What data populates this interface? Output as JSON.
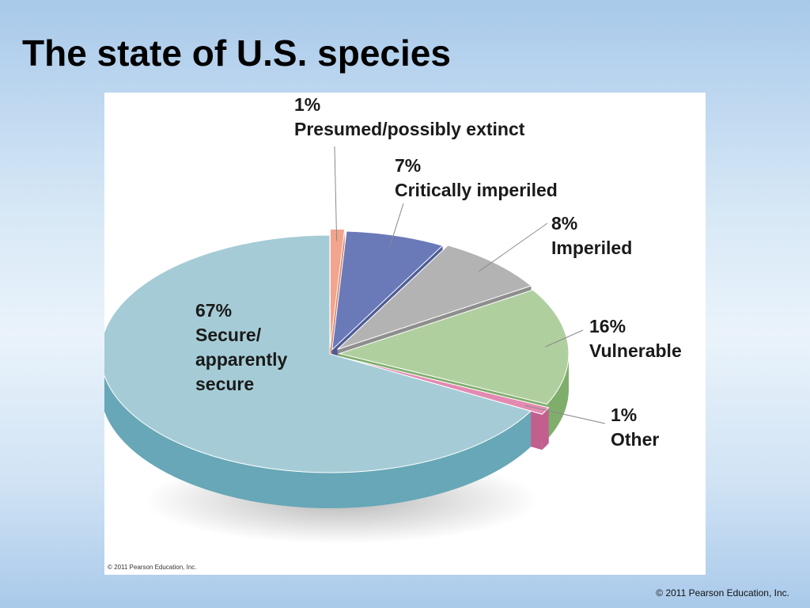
{
  "slide": {
    "title": "The state of U.S. species",
    "footer_credit": "© 2011 Pearson Education, Inc.",
    "figure_credit": "© 2011 Pearson Education, Inc."
  },
  "chart_data": {
    "type": "pie",
    "style": "3d-exploded",
    "title": "",
    "slices": [
      {
        "percent_label": "1%",
        "category": "Presumed/possibly extinct",
        "value": 1,
        "color": "#f2a48c",
        "side_color": "#d9826a"
      },
      {
        "percent_label": "7%",
        "category": "Critically imperiled",
        "value": 7,
        "color": "#6a79b8",
        "side_color": "#4e5c96"
      },
      {
        "percent_label": "8%",
        "category": "Imperiled",
        "value": 8,
        "color": "#b3b3b3",
        "side_color": "#8e8e8e"
      },
      {
        "percent_label": "16%",
        "category": "Vulnerable",
        "value": 16,
        "color": "#b0cf9f",
        "side_color": "#7fae6c"
      },
      {
        "percent_label": "1%",
        "category": "Other",
        "value": 1,
        "color": "#e38ab2",
        "side_color": "#c25f8e"
      },
      {
        "percent_label": "67%",
        "category": "Secure/ apparently secure",
        "value": 67,
        "color": "#a5ccd6",
        "side_color": "#67a7b7"
      }
    ]
  }
}
